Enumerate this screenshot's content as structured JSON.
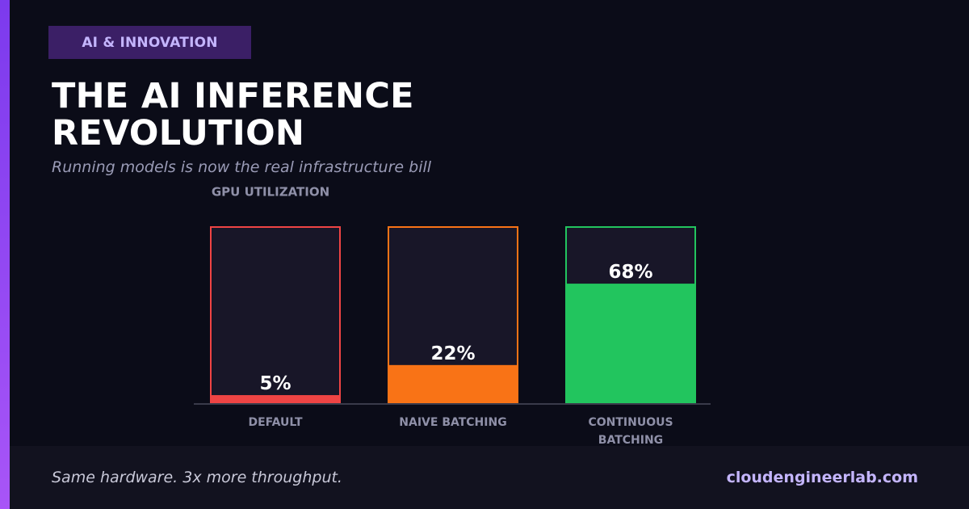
{
  "badge": {
    "label": "AI & INNOVATION"
  },
  "header": {
    "title": "THE AI INFERENCE REVOLUTION",
    "subtitle": "Running models is now the real infrastructure bill"
  },
  "footer": {
    "tagline": "Same hardware. 3x more throughput.",
    "site": "cloudengineerlab.com"
  },
  "colors": {
    "background": "#0b0c18",
    "accent": "#a855f7",
    "bar_track": "#181628",
    "axis": "#3a3b4a"
  },
  "chart_data": {
    "type": "bar",
    "title": "GPU UTILIZATION",
    "categories": [
      "DEFAULT",
      "NAIVE BATCHING",
      "CONTINUOUS BATCHING"
    ],
    "values": [
      5,
      22,
      68
    ],
    "value_labels": [
      "5%",
      "22%",
      "68%"
    ],
    "colors": [
      "#ef4444",
      "#f97316",
      "#22c55e"
    ],
    "ylim": [
      0,
      100
    ],
    "unit": "%",
    "grid": false,
    "legend": "none"
  }
}
